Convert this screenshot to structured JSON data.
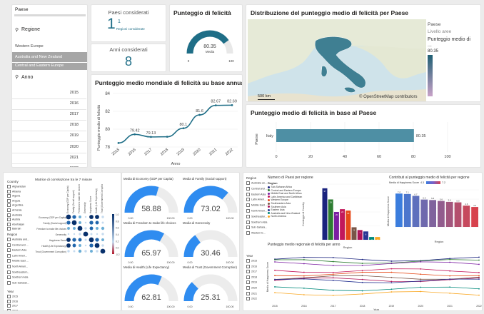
{
  "slicers": {
    "paese_title": "Paese",
    "regione_title": "Regione",
    "regione_items": [
      "Western Europe",
      "Australia and New Zealand",
      "Central and Eastern Europe"
    ],
    "anno_title": "Anno",
    "anno_items": [
      "2015",
      "2016",
      "2017",
      "2018",
      "2019",
      "2020",
      "2021",
      "2022"
    ]
  },
  "kpi": {
    "paesi_title": "Paesi considerati",
    "paesi_value": "1",
    "paesi_sub": "Regioni considerate",
    "paesi_sub_value": "1",
    "anni_title": "Anni considerati",
    "anni_value": "8"
  },
  "gauge_felicita": {
    "title": "Punteggio di felicità",
    "value": "80.35",
    "caption": "Media",
    "min": "0",
    "max": "100",
    "fraction": 0.8035
  },
  "map": {
    "title": "Distribuzione del punteggio medio di felicità per Paese",
    "legend_paese": "Paese",
    "legend_livello": "Livello aree",
    "legend_score_title": "Punteggio medio di ...",
    "legend_value": "80.35",
    "scale": "500 km",
    "attribution": "© OpenStreetMap contributors",
    "colors": {
      "low": "#c8a2c8",
      "high": "#1f5f73"
    }
  },
  "line_chart": {
    "title": "Punteggio medio mondiale di felicità su base annua",
    "chart_data": {
      "type": "line",
      "x": [
        "2015",
        "2016",
        "2017",
        "2018",
        "2019",
        "2020",
        "2021",
        "2022"
      ],
      "values": [
        78.45,
        79.42,
        79.13,
        79.15,
        80.1,
        81.6,
        82.67,
        82.69
      ],
      "labels": [
        "",
        "79.42",
        "79.13",
        "",
        "80.1",
        "81.6",
        "82.67",
        "82.69"
      ],
      "xlabel": "Anno",
      "ylabel": "Punteggio medio di felicità",
      "ylim": [
        78,
        84
      ],
      "yticks": [
        "78",
        "80",
        "82",
        "84"
      ],
      "color": "#1f6e87"
    }
  },
  "bar_chart": {
    "title": "Punteggio medio di felicità in base al Paese",
    "chart_data": {
      "type": "bar",
      "categories": [
        "Italy"
      ],
      "values": [
        80.35
      ],
      "xlabel": "",
      "ylabel": "Paese",
      "xlim": [
        0,
        100
      ],
      "xticks": [
        "0",
        "20",
        "40",
        "60",
        "80",
        "100"
      ],
      "color": "#4e8fa4"
    }
  },
  "bottom_left": {
    "country_title": "Country",
    "countries": [
      "Afghanistan",
      "Albania",
      "Algeria",
      "Angola",
      "Argentina",
      "Armenia",
      "Australia",
      "Austria",
      "Azerbaijan",
      "Bahrain"
    ],
    "region_title": "Region",
    "regions": [
      "Australia and...",
      "Central and ...",
      "Eastern Asia",
      "Latin Ameri...",
      "Middle East ...",
      "North Ameri...",
      "Southeastern...",
      "Southern Asia",
      "Sub-Saharan..."
    ],
    "year_title": "Year",
    "years": [
      "2015",
      "2016",
      "2017",
      "2018"
    ],
    "matrix_title": "Matrice di correlazione tra le 7 misure",
    "matrix_rows": [
      "Economy (GDP per Capita)",
      "Family (Social support)",
      "Freedom to make life choices",
      "Generosity",
      "Happiness Score",
      "Health (Life Expectancy)",
      "Trust (Government Corruption)"
    ],
    "matrix_legend": [
      "1.0",
      "0.8",
      "0.6",
      "0.4",
      "0.2",
      "0.0",
      "-0.2"
    ]
  },
  "gauges": [
    {
      "title": "Media di Economy (GDP per Capita)",
      "value": "58.88",
      "min": "0.00",
      "max": "100.00",
      "fraction": 0.5888
    },
    {
      "title": "Media di Family (Social support)",
      "value": "73.02",
      "min": "0.00",
      "max": "100.00",
      "fraction": 0.7302
    },
    {
      "title": "Media di Freedom to make life choices",
      "value": "65.97",
      "min": "0.00",
      "max": "100.00",
      "fraction": 0.6597
    },
    {
      "title": "Media di Generosity",
      "value": "30.46",
      "min": "0.00",
      "max": "100.00",
      "fraction": 0.3046
    },
    {
      "title": "Media di Health (Life Expectancy)",
      "value": "62.81",
      "min": "0.00",
      "max": "100.00",
      "fraction": 0.6281
    },
    {
      "title": "Media di Trust (Government Corruption)",
      "value": "25.31",
      "min": "0.00",
      "max": "100.00",
      "fraction": 0.2531
    }
  ],
  "bottom_right": {
    "region_title": "Region",
    "regions": [
      "Australia an...",
      "Central and ...",
      "Eastern Asia",
      "Latin Ameri...",
      "Middle East ...",
      "North Ameri...",
      "Southeaster...",
      "Southern Asia",
      "Sub-Sahara...",
      "Western E..."
    ],
    "year_title": "Year",
    "years": [
      "2015",
      "2016",
      "2017",
      "2018",
      "2019",
      "2020",
      "2021",
      "2022"
    ],
    "count_title": "Numero di Paesi per regione",
    "count_legend_title": "Region",
    "count_legend": [
      "Sub-Saharan Africa",
      "Central and Eastern Europe",
      "Middle East and North Africa",
      "Latin America and Caribbean",
      "Western Europe",
      "Southeastern Asia",
      "Southern Asia",
      "Eastern Asia",
      "Australia and New Zealand",
      "North America"
    ],
    "count_values": [
      37,
      29,
      20,
      22,
      21,
      9,
      7,
      6,
      2,
      2
    ],
    "count_xlabel": "Region",
    "count_ylabel": "Conteggio di Country",
    "contrib_title": "Contributi al punteggio medio di felicità per regione",
    "contrib_legend": "Media di Happiness Score",
    "contrib_min": "4.3",
    "contrib_max": "7.2",
    "contrib_values": [
      7.2,
      7.1,
      6.7,
      5.9,
      5.8,
      5.6,
      5.4,
      5.3,
      4.6,
      4.3
    ],
    "contrib_xlabel": "Region",
    "contrib_ylabel": "Media di Happiness Score",
    "trend_title": "Punteggio medio regionale di felicità per anno",
    "trend_xlabel": "Year",
    "trend_ylabel": "Media di Happiness Score",
    "trend_years": [
      "2015",
      "2016",
      "2017",
      "2018",
      "2019",
      "2020",
      "2021",
      "2022"
    ]
  },
  "colors": {
    "teal": "#1f6e87",
    "gauge_blue": "#2f8cf0",
    "slicer_selected": "#a6a6a6"
  }
}
